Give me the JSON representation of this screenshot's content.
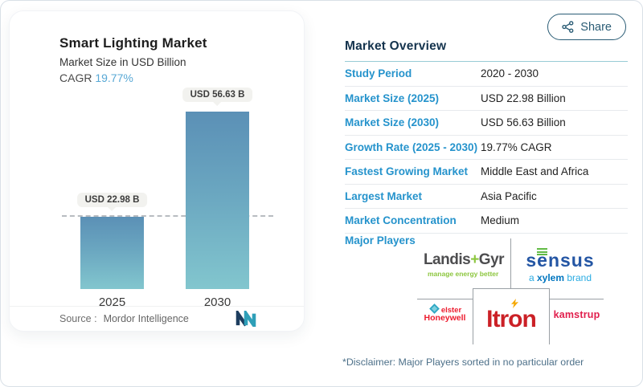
{
  "share": {
    "label": "Share"
  },
  "chart": {
    "title": "Smart Lighting Market",
    "subtitle": "Market Size in USD Billion",
    "cagr_label": "CAGR",
    "cagr_value": "19.77%",
    "source_label": "Source :",
    "source_name": "Mordor Intelligence"
  },
  "chart_data": {
    "type": "bar",
    "categories": [
      "2025",
      "2030"
    ],
    "values": [
      22.98,
      56.63
    ],
    "bar_labels": [
      "USD 22.98 B",
      "USD 56.63 B"
    ],
    "title": "Smart Lighting Market",
    "ylabel": "Market Size in USD Billion",
    "ylim": [
      0,
      56.63
    ],
    "grid": "off",
    "legend": "none",
    "annotations": [
      "dashed horizontal reference line at 22.98 (2025 level)"
    ]
  },
  "overview": {
    "heading": "Market Overview",
    "rows": [
      {
        "label": "Study Period",
        "value": "2020 - 2030"
      },
      {
        "label": "Market Size (2025)",
        "value": "USD 22.98 Billion"
      },
      {
        "label": "Market Size (2030)",
        "value": "USD 56.63 Billion"
      },
      {
        "label": "Growth Rate (2025 - 2030)",
        "value": "19.77% CAGR"
      },
      {
        "label": "Fastest Growing Market",
        "value": "Middle East and Africa"
      },
      {
        "label": "Largest Market",
        "value": "Asia Pacific"
      },
      {
        "label": "Market Concentration",
        "value": "Medium"
      }
    ]
  },
  "players": {
    "heading": "Major Players",
    "landis": {
      "part1": "Landis",
      "plus": "+",
      "part2": "Gyr",
      "tagline": "manage energy better"
    },
    "sensus": {
      "s_pre": "s",
      "s_e": "e",
      "s_rest": "nsus",
      "tagline_a": "a ",
      "tagline_brand": "xylem",
      "tagline_rest": " brand"
    },
    "honeywell": {
      "sub": "elster",
      "name": "Honeywell"
    },
    "itron": {
      "name_pre": "Itr",
      "name_o": "o",
      "name_post": "n"
    },
    "kamstrup": {
      "name": "kamstrup"
    },
    "disclaimer": "*Disclaimer: Major Players sorted in no particular order"
  },
  "colors": {
    "accent_blue": "#2593cc",
    "heading_navy": "#14334d",
    "share_teal": "#2a5c75",
    "bar_top": "#5b90b6",
    "bar_bottom": "#82c6ce",
    "dashed_line": "#b8bcc1",
    "landis_green": "#8cc63e",
    "sensus_blue": "#2456a4",
    "xylem_blue": "#0075bf",
    "honeywell_red": "#ed1b2e",
    "itron_red": "#cb2026",
    "itron_bolt": "#f5a800",
    "kamstrup_red": "#e11e4c"
  }
}
